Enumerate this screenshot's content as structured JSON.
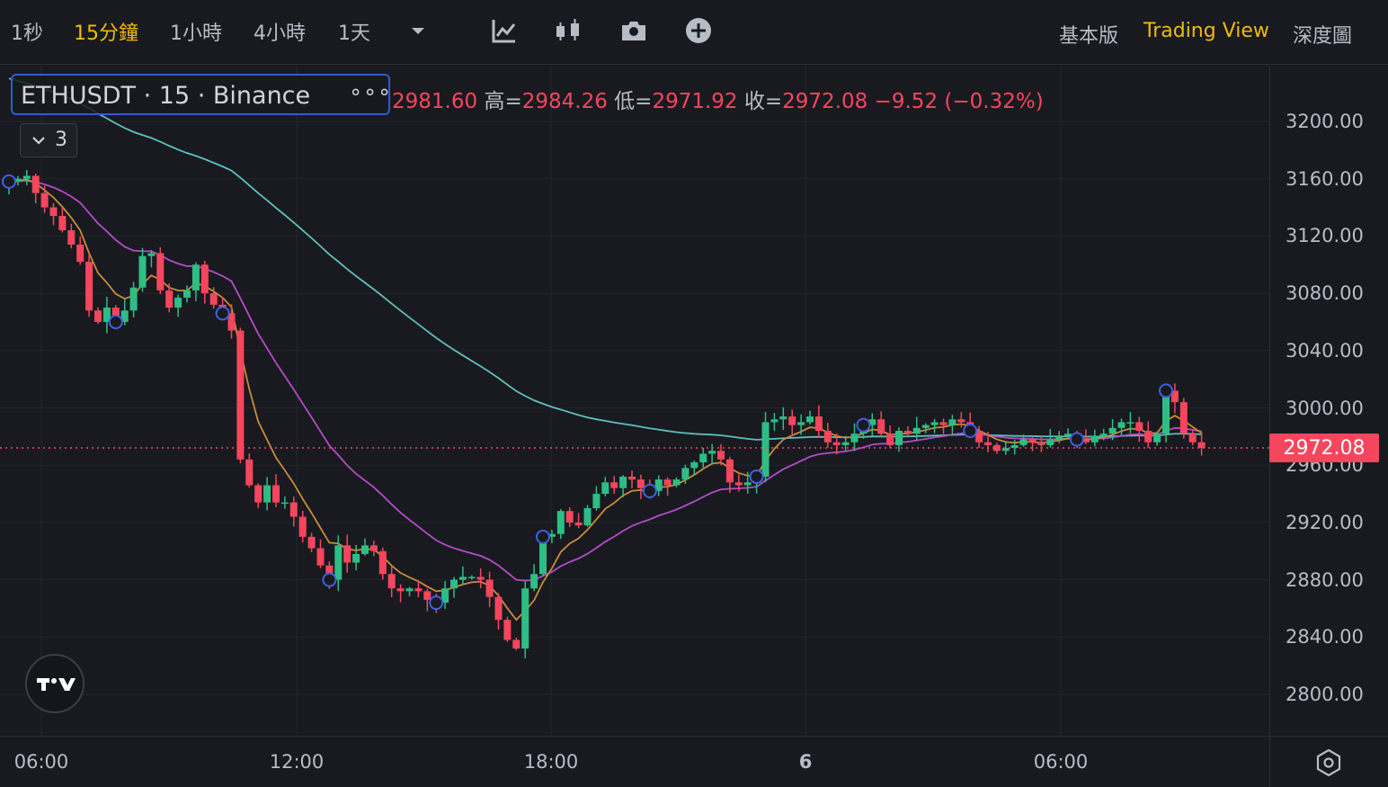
{
  "toolbar": {
    "timeframes": [
      {
        "label": "1秒",
        "active": false
      },
      {
        "label": "15分鐘",
        "active": true
      },
      {
        "label": "1小時",
        "active": false
      },
      {
        "label": "4小時",
        "active": false
      },
      {
        "label": "1天",
        "active": false
      }
    ],
    "icons": [
      "dropdown-caret-icon",
      "indicator-icon",
      "candle-type-icon",
      "camera-icon",
      "add-icon"
    ],
    "views": [
      {
        "label": "基本版",
        "active": false
      },
      {
        "label": "Trading View",
        "active": true
      },
      {
        "label": "深度圖",
        "active": false
      }
    ]
  },
  "legend": {
    "symbol": "ETHUSDT · 15 · Binance",
    "more": "∘∘∘",
    "open_value": "2981.60",
    "high_label": "高=",
    "high_value": "2984.26",
    "low_label": "低=",
    "low_value": "2971.92",
    "close_label": "收=",
    "close_value": "2972.08",
    "change": "−9.52 (−0.32%)",
    "indicator_count": "3"
  },
  "price_axis": {
    "labels": [
      "3200.00",
      "3160.00",
      "3120.00",
      "3080.00",
      "3040.00",
      "3000.00",
      "2960.00",
      "2920.00",
      "2880.00",
      "2840.00",
      "2800.00"
    ],
    "last_price": "2972.08"
  },
  "time_axis": {
    "labels": [
      {
        "text": "06:00",
        "bold": false
      },
      {
        "text": "12:00",
        "bold": false
      },
      {
        "text": "18:00",
        "bold": false
      },
      {
        "text": "6",
        "bold": true
      },
      {
        "text": "06:00",
        "bold": false
      }
    ]
  },
  "colors": {
    "up": "#2ebd85",
    "down": "#f6465d",
    "accent": "#f0b90b",
    "ma_fast": "#c98b3a",
    "ma_mid": "#b54bc9",
    "ma_slow": "#5fbfbc",
    "marker": "#3f5fe0"
  },
  "chart_data": {
    "type": "candlestick",
    "symbol": "ETHUSDT",
    "interval": "15",
    "ylim": [
      2780,
      3230
    ],
    "last_price": 2972.08,
    "candles_from_series": "close",
    "close": [
      3158,
      3160,
      3162,
      3150,
      3140,
      3134,
      3124,
      3114,
      3102,
      3068,
      3060,
      3070,
      3060,
      3068,
      3084,
      3106,
      3108,
      3082,
      3070,
      3077,
      3082,
      3100,
      3080,
      3072,
      3066,
      3054,
      2964,
      2946,
      2934,
      2946,
      2934,
      2934,
      2924,
      2910,
      2902,
      2890,
      2880,
      2904,
      2892,
      2898,
      2904,
      2900,
      2884,
      2874,
      2872,
      2874,
      2872,
      2866,
      2864,
      2874,
      2880,
      2882,
      2882,
      2880,
      2868,
      2852,
      2838,
      2832,
      2874,
      2884,
      2910,
      2912,
      2928,
      2920,
      2918,
      2930,
      2940,
      2948,
      2944,
      2952,
      2950,
      2944,
      2942,
      2950,
      2946,
      2950,
      2958,
      2962,
      2968,
      2970,
      2964,
      2948,
      2946,
      2948,
      2952,
      2990,
      2992,
      2994,
      2988,
      2990,
      2994,
      2984,
      2976,
      2974,
      2976,
      2982,
      2988,
      2992,
      2982,
      2974,
      2984,
      2982,
      2986,
      2988,
      2990,
      2988,
      2992,
      2990,
      2984,
      2976,
      2974,
      2970,
      2972,
      2974,
      2978,
      2976,
      2974,
      2978,
      2980,
      2982,
      2978,
      2976,
      2980,
      2982,
      2986,
      2990,
      2990,
      2984,
      2976,
      2982,
      3012,
      3004,
      2982,
      2976,
      2972
    ]
  }
}
